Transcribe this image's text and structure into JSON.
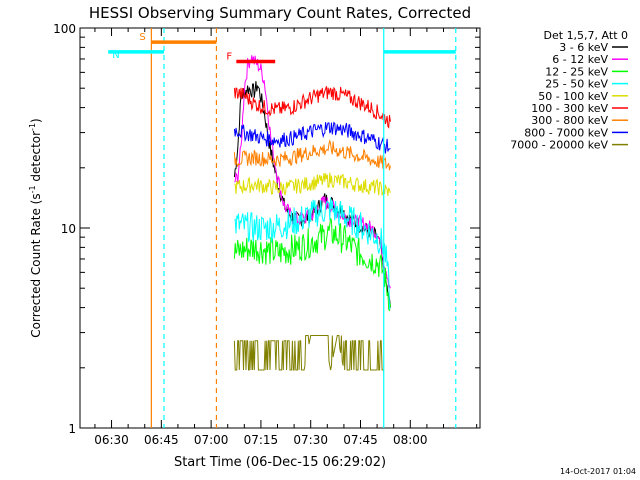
{
  "chart_data": {
    "type": "line",
    "title": "HESSI Observing Summary Count Rates, Corrected",
    "xlabel": "Start Time (06-Dec-15 06:29:02)",
    "ylabel_main": "Corrected Count Rate (s",
    "ylabel_sup": "-1",
    "ylabel_mid": " detector",
    "ylabel_end": ")",
    "y_scale": "log",
    "x_range_min": [
      29.0,
      105.0
    ],
    "y_range": [
      1,
      100
    ],
    "x_ticks": [
      {
        "m": 30,
        "label": "06:30"
      },
      {
        "m": 45,
        "label": "06:45"
      },
      {
        "m": 60,
        "label": "07:00"
      },
      {
        "m": 75,
        "label": "07:15"
      },
      {
        "m": 90,
        "label": "07:30"
      },
      {
        "m": 105,
        "label": "07:45"
      },
      {
        "m": 120,
        "label": "08:00"
      }
    ],
    "y_ticks": [
      {
        "v": 1,
        "label": "1"
      },
      {
        "v": 10,
        "label": "10"
      },
      {
        "v": 100,
        "label": "100"
      }
    ],
    "legend_title": "Det 1,5,7, Att 0",
    "legend_position": "right",
    "series": [
      {
        "name": "3 - 6 keV",
        "color": "#000000",
        "x_min": [
          67,
          68,
          69,
          70,
          71,
          72,
          73,
          74,
          75,
          76,
          77,
          78,
          80,
          82,
          84,
          86,
          88,
          90,
          92,
          94,
          96,
          98,
          100,
          102,
          104,
          106,
          108,
          110,
          111,
          112,
          113,
          114
        ],
        "y": [
          18,
          25,
          45,
          48,
          50,
          49,
          48,
          52,
          45,
          38,
          30,
          24,
          17,
          13,
          11.5,
          11,
          11.2,
          11.5,
          12.5,
          14,
          13.5,
          12.5,
          12,
          11,
          10.5,
          10,
          9.5,
          9,
          8,
          6,
          5,
          4
        ]
      },
      {
        "name": "6 - 12 keV",
        "color": "#ff00ff",
        "x_min": [
          67,
          68,
          69,
          70,
          71,
          72,
          73,
          74,
          75,
          76,
          77,
          78,
          80,
          82,
          84,
          86,
          88,
          90,
          92,
          94,
          96,
          98,
          100,
          102,
          104,
          106,
          108,
          110,
          111,
          112,
          113,
          114
        ],
        "y": [
          17,
          18,
          25,
          50,
          65,
          72,
          68,
          66,
          62,
          55,
          40,
          28,
          18,
          13,
          11.5,
          11,
          11.2,
          11.5,
          12.5,
          13.5,
          13,
          12,
          11.5,
          11,
          10.5,
          10.5,
          10,
          9.5,
          8.5,
          7,
          6,
          5
        ]
      },
      {
        "name": "12 - 25 keV",
        "color": "#00ff00",
        "x_min": [
          67,
          70,
          73,
          76,
          80,
          84,
          88,
          92,
          96,
          100,
          104,
          108,
          110,
          112,
          113,
          114
        ],
        "y": [
          7.5,
          7.8,
          8.0,
          7.8,
          7.5,
          7.8,
          8.2,
          8.8,
          9.5,
          8.8,
          7.6,
          7.0,
          6.8,
          6.0,
          5.0,
          4.2
        ]
      },
      {
        "name": "25 - 50 keV",
        "color": "#00ffff",
        "x_min": [
          67,
          70,
          73,
          76,
          80,
          84,
          88,
          92,
          96,
          100,
          104,
          108,
          110,
          112,
          113,
          114
        ],
        "y": [
          10.5,
          10.2,
          10.0,
          10.0,
          10.2,
          10.6,
          11.2,
          12.0,
          12.5,
          11.5,
          10.5,
          9.5,
          9.0,
          8.2,
          6.5,
          4.0
        ]
      },
      {
        "name": "50 - 100 keV",
        "color": "#dddd00",
        "x_min": [
          67,
          70,
          73,
          76,
          80,
          84,
          88,
          92,
          96,
          100,
          104,
          108,
          110,
          112,
          114
        ],
        "y": [
          16,
          16.2,
          16.5,
          16.2,
          15.8,
          16,
          16.5,
          17,
          17.5,
          17,
          16.5,
          16,
          16,
          15.5,
          15
        ]
      },
      {
        "name": "100 - 300 keV",
        "color": "#ff0000",
        "x_min": [
          67,
          70,
          73,
          76,
          80,
          84,
          88,
          92,
          96,
          100,
          104,
          108,
          110,
          112,
          114
        ],
        "y": [
          48,
          46,
          42,
          40,
          39,
          40,
          43,
          46,
          48,
          46,
          43,
          40,
          38,
          36,
          34
        ]
      },
      {
        "name": "300 - 800 keV",
        "color": "#ff8000",
        "x_min": [
          67,
          70,
          73,
          76,
          80,
          84,
          88,
          92,
          96,
          100,
          104,
          108,
          110,
          112,
          114
        ],
        "y": [
          22,
          22.2,
          22.5,
          22.2,
          22,
          22.5,
          23.5,
          24.5,
          25,
          24,
          23,
          22,
          21.5,
          21,
          20.5
        ]
      },
      {
        "name": "800 - 7000 keV",
        "color": "#0000ff",
        "x_min": [
          67,
          70,
          73,
          76,
          80,
          84,
          88,
          92,
          96,
          100,
          104,
          108,
          110,
          112,
          114
        ],
        "y": [
          31,
          30,
          29,
          28,
          27.5,
          28,
          29.5,
          31,
          32,
          31,
          29.5,
          28,
          27,
          26,
          25
        ]
      },
      {
        "name": "7000 - 20000 keV",
        "color": "#808000",
        "x_min": [
          67,
          70,
          73,
          76,
          80,
          84,
          88,
          90,
          92,
          94,
          96,
          98,
          100,
          104,
          108,
          112
        ],
        "y": [
          1.95,
          1.95,
          1.95,
          1.95,
          1.95,
          1.95,
          1.95,
          2.9,
          2.9,
          2.9,
          1.95,
          2.9,
          1.95,
          1.95,
          1.95,
          1.95
        ]
      }
    ],
    "annotations": [
      {
        "label": "S",
        "color": "#ff8000",
        "x_start_min": 42.0,
        "x_end_min": 61.6,
        "y": 85
      },
      {
        "label": "N",
        "color": "#00ffff",
        "x_start_min": 29.0,
        "x_end_min": 45.8,
        "y": 76
      },
      {
        "label": "F",
        "color": "#ff0000",
        "x_start_min": 67.6,
        "x_end_min": 79.3,
        "y": 68
      },
      {
        "label": "",
        "color": "#00ffff",
        "x_start_min": 112.0,
        "x_end_min": 133.7,
        "y": 76
      }
    ],
    "vertical_lines": [
      {
        "color": "#ff8000",
        "style": "solid",
        "x_min": 42.0
      },
      {
        "color": "#00ffff",
        "style": "dashed",
        "x_min": 45.8
      },
      {
        "color": "#ff8000",
        "style": "dashed",
        "x_min": 61.6
      },
      {
        "color": "#00ffff",
        "style": "solid",
        "x_min": 112.0
      },
      {
        "color": "#00ffff",
        "style": "dashed",
        "x_min": 133.7
      }
    ]
  },
  "footer_date": "14-Oct-2017 01:04"
}
